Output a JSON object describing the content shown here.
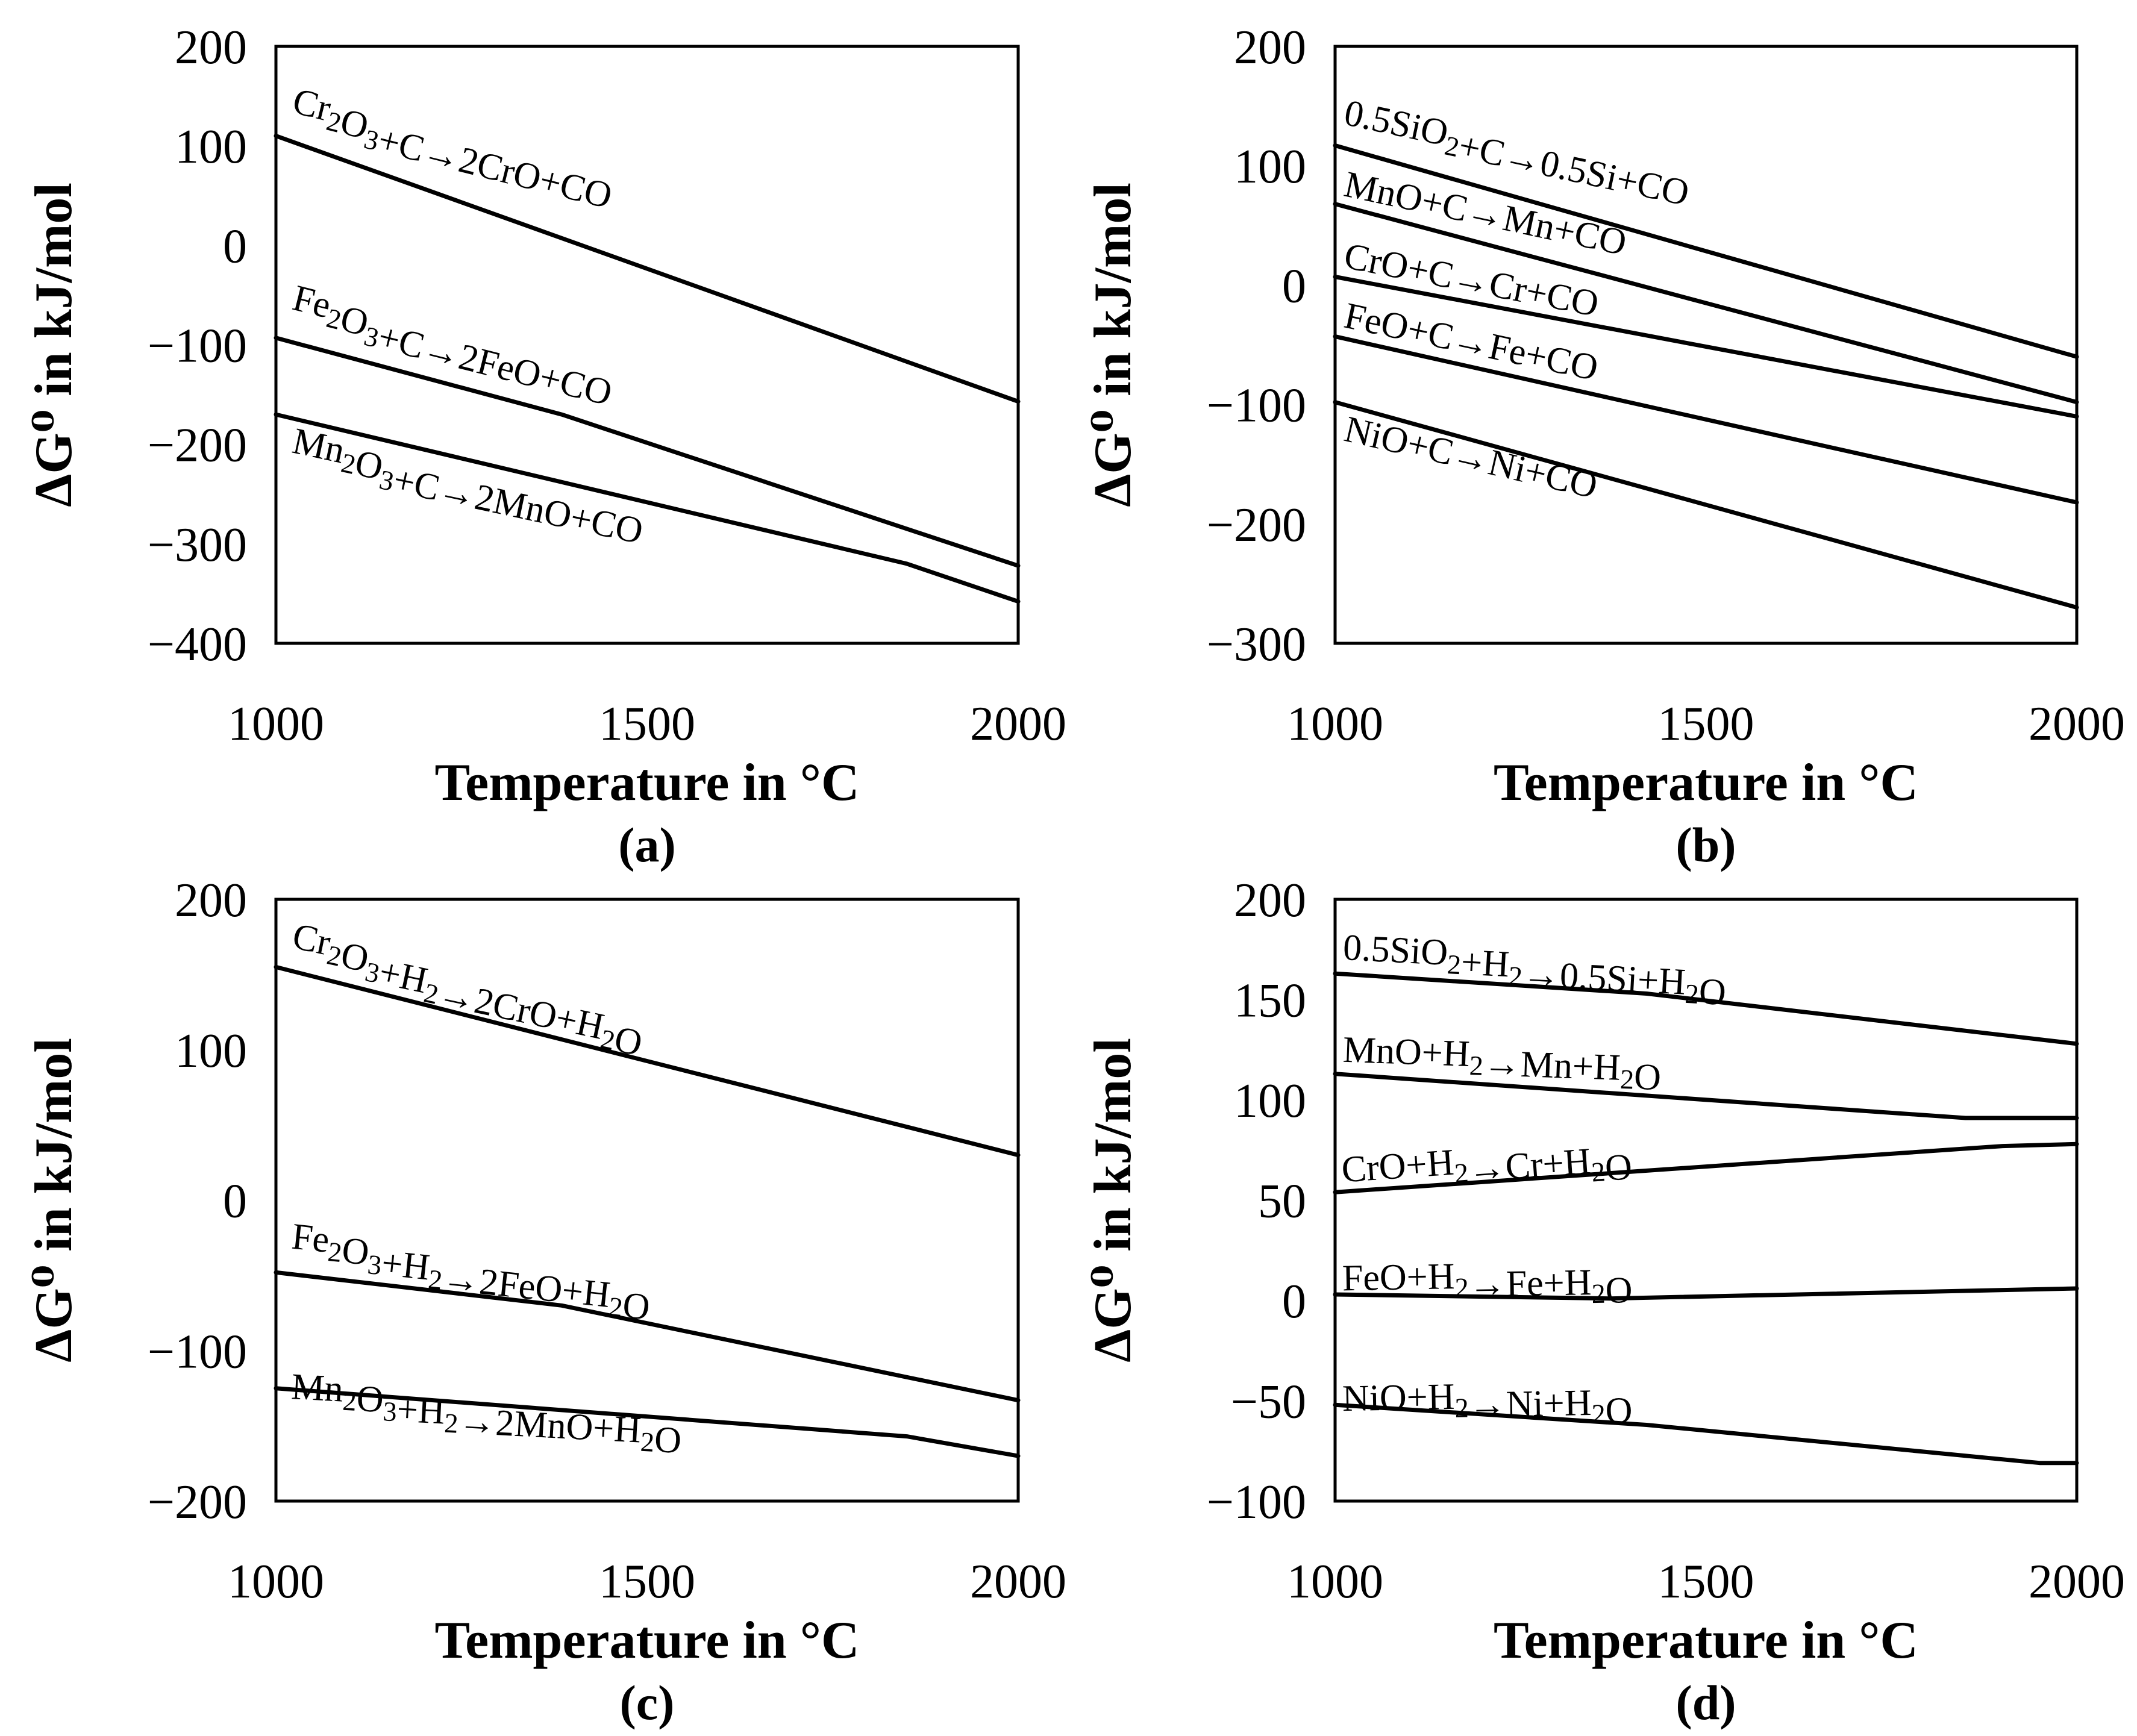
{
  "chart_data": [
    {
      "type": "line",
      "panel_label": "(a)",
      "xlabel": "Temperature in °C",
      "ylabel": "ΔG⁰ in kJ/mol",
      "xlim": [
        1000,
        2000
      ],
      "ylim": [
        -400,
        200
      ],
      "xticks": [
        "1000",
        "1500",
        "2000"
      ],
      "yticks": [
        "200",
        "100",
        "0",
        "−100",
        "−200",
        "−300",
        "−400"
      ],
      "grid": false,
      "series": [
        {
          "name": "Cr2O3+C→2CrO+CO",
          "label": {
            "base": [
              "Cr",
              "O",
              "+C→2CrO+CO"
            ],
            "sub": [
              "2",
              "3"
            ]
          },
          "x": [
            1000,
            2000
          ],
          "y": [
            110,
            -157
          ]
        },
        {
          "name": "Fe2O3+C→2FeO+CO",
          "label": {
            "base": [
              "Fe",
              "O",
              "+C→2FeO+CO"
            ],
            "sub": [
              "2",
              "3"
            ]
          },
          "x": [
            1000,
            1385,
            2000
          ],
          "y": [
            -93,
            -170,
            -322
          ]
        },
        {
          "name": "Mn2O3+C→2MnO+CO",
          "label": {
            "base": [
              "Mn",
              "O",
              "+C→2MnO+CO"
            ],
            "sub": [
              "2",
              "3"
            ]
          },
          "x": [
            1000,
            1850,
            2000
          ],
          "y": [
            -170,
            -320,
            -358
          ]
        }
      ]
    },
    {
      "type": "line",
      "panel_label": "(b)",
      "xlabel": "Temperature in °C",
      "ylabel": "ΔG⁰ in kJ/mol",
      "xlim": [
        1000,
        2000
      ],
      "ylim": [
        -300,
        200
      ],
      "xticks": [
        "1000",
        "1500",
        "2000"
      ],
      "yticks": [
        "200",
        "100",
        "0",
        "−100",
        "−200",
        "−300"
      ],
      "grid": false,
      "series": [
        {
          "name": "0.5SiO2+C→0.5Si+CO",
          "label": {
            "base": [
              "0.5SiO",
              "+C→0.5Si+CO"
            ],
            "sub": [
              "2"
            ]
          },
          "x": [
            1000,
            2000
          ],
          "y": [
            117,
            -60
          ]
        },
        {
          "name": "MnO+C→Mn+CO",
          "label": {
            "base": [
              "MnO+C→Mn+CO"
            ],
            "sub": []
          },
          "x": [
            1000,
            2000
          ],
          "y": [
            68,
            -98
          ]
        },
        {
          "name": "CrO+C→Cr+CO",
          "label": {
            "base": [
              "CrO+C→Cr+CO"
            ],
            "sub": []
          },
          "x": [
            1000,
            2000
          ],
          "y": [
            7,
            -110
          ]
        },
        {
          "name": "FeO+C→Fe+CO",
          "label": {
            "base": [
              "FeO+C→Fe+CO"
            ],
            "sub": []
          },
          "x": [
            1000,
            2000
          ],
          "y": [
            -43,
            -182
          ]
        },
        {
          "name": "NiO+C→Ni+CO",
          "label": {
            "base": [
              "NiO+C→Ni+CO"
            ],
            "sub": []
          },
          "x": [
            1000,
            2000
          ],
          "y": [
            -98,
            -270
          ]
        }
      ]
    },
    {
      "type": "line",
      "panel_label": "(c)",
      "xlabel": "Temperature in °C",
      "ylabel": "ΔG⁰ in kJ/mol",
      "xlim": [
        1000,
        2000
      ],
      "ylim": [
        -200,
        200
      ],
      "xticks": [
        "1000",
        "1500",
        "2000"
      ],
      "yticks": [
        "200",
        "100",
        "0",
        "−100",
        "−200"
      ],
      "grid": false,
      "series": [
        {
          "name": "Cr2O3+H2→2CrO+H2O",
          "label": {
            "base": [
              "Cr",
              "O",
              "+H",
              "→2CrO+H",
              "O"
            ],
            "sub": [
              "2",
              "3",
              "2",
              "2"
            ]
          },
          "x": [
            1000,
            2000
          ],
          "y": [
            155,
            30
          ]
        },
        {
          "name": "Fe2O3+H2→2FeO+H2O",
          "label": {
            "base": [
              "Fe",
              "O",
              "+H",
              "→2FeO+H",
              "O"
            ],
            "sub": [
              "2",
              "3",
              "2",
              "2"
            ]
          },
          "x": [
            1000,
            1385,
            2000
          ],
          "y": [
            -48,
            -70,
            -133
          ]
        },
        {
          "name": "Mn2O3+H2→2MnO+H2O",
          "label": {
            "base": [
              "Mn",
              "O",
              "+H",
              "→2MnO+H",
              "O"
            ],
            "sub": [
              "2",
              "3",
              "2",
              "2"
            ]
          },
          "x": [
            1000,
            1850,
            2000
          ],
          "y": [
            -125,
            -157,
            -170
          ]
        }
      ]
    },
    {
      "type": "line",
      "panel_label": "(d)",
      "xlabel": "Temperature in °C",
      "ylabel": "ΔG⁰ in kJ/mol",
      "xlim": [
        1000,
        2000
      ],
      "ylim": [
        -100,
        200
      ],
      "xticks": [
        "1000",
        "1500",
        "2000"
      ],
      "yticks": [
        "200",
        "150",
        "100",
        "50",
        "0",
        "−50",
        "−100"
      ],
      "grid": false,
      "series": [
        {
          "name": "0.5SiO2+H2→0.5Si+H2O",
          "label": {
            "base": [
              "0.5SiO",
              "+H",
              "→0.5Si+H",
              "O"
            ],
            "sub": [
              "2",
              "2",
              "2"
            ]
          },
          "x": [
            1000,
            1420,
            2000
          ],
          "y": [
            163,
            153,
            128
          ]
        },
        {
          "name": "MnO+H2→Mn+H2O",
          "label": {
            "base": [
              "MnO+H",
              "→Mn+H",
              "O"
            ],
            "sub": [
              "2",
              "2"
            ]
          },
          "x": [
            1000,
            1850,
            2000
          ],
          "y": [
            113,
            91,
            91
          ]
        },
        {
          "name": "CrO+H2→Cr+H2O",
          "label": {
            "base": [
              "CrO+H",
              "→Cr+H",
              "O"
            ],
            "sub": [
              "2",
              "2"
            ]
          },
          "x": [
            1000,
            1900,
            2000
          ],
          "y": [
            54,
            77,
            78
          ]
        },
        {
          "name": "FeO+H2→Fe+H2O",
          "label": {
            "base": [
              "FeO+H",
              "→Fe+H",
              "O"
            ],
            "sub": [
              "2",
              "2"
            ]
          },
          "x": [
            1000,
            1370,
            2000
          ],
          "y": [
            3,
            1,
            6
          ]
        },
        {
          "name": "NiO+H2→Ni+H2O",
          "label": {
            "base": [
              "NiO+H",
              "→Ni+H",
              "O"
            ],
            "sub": [
              "2",
              "2"
            ]
          },
          "x": [
            1000,
            1420,
            1950,
            2000
          ],
          "y": [
            -52,
            -62,
            -81,
            -81
          ]
        }
      ]
    }
  ]
}
